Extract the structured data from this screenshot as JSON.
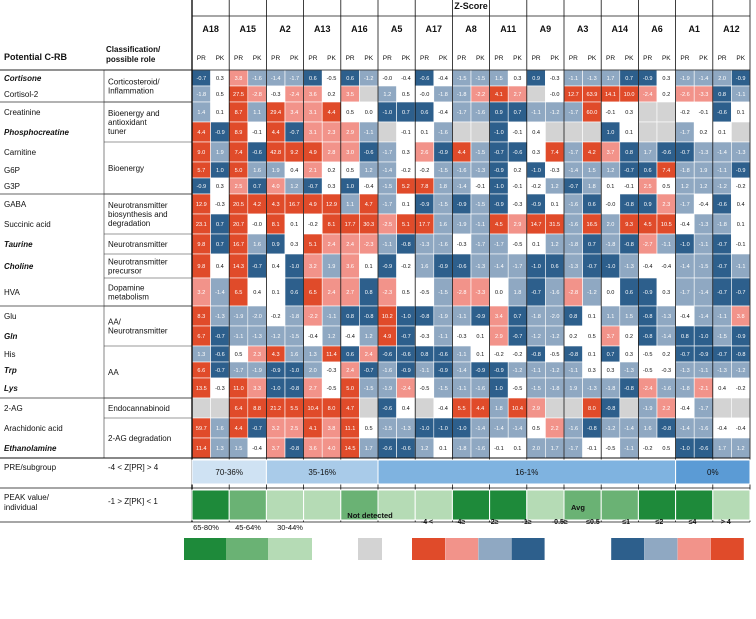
{
  "chart_data": {
    "type": "heatmap",
    "title": "Z-Score",
    "row_header": "Potential C-RB",
    "class_header": "Classification/ possible role",
    "subjects": [
      "A18",
      "A15",
      "A2",
      "A13",
      "A16",
      "A5",
      "A17",
      "A8",
      "A11",
      "A9",
      "A3",
      "A14",
      "A6",
      "A1",
      "A12"
    ],
    "subcolumns": [
      "PR",
      "PK"
    ],
    "rows": [
      {
        "name": "Cortisone",
        "italic": true,
        "values": [
          -0.7,
          0.3,
          3.8,
          -1.6,
          -1.4,
          -1.7,
          0.6,
          -0.5,
          0.6,
          -1.2,
          -0.0,
          -0.4,
          -0.6,
          -0.4,
          -1.5,
          -1.5,
          1.5,
          0.3,
          0.9,
          -0.3,
          -1.1,
          -1.3,
          1.7,
          0.7,
          -0.9,
          0.3,
          -1.9,
          -1.4,
          2.0,
          -0.9
        ]
      },
      {
        "name": "Cortisol-2",
        "italic": false,
        "values": [
          -1.8,
          0.5,
          27.5,
          -2.8,
          -0.3,
          -2.4,
          3.6,
          0.2,
          3.5,
          null,
          1.2,
          0.5,
          -0.0,
          -1.8,
          -1.8,
          -2.2,
          4.1,
          2.7,
          null,
          -0.0,
          12.7,
          63.9,
          14.1,
          10.0,
          -2.4,
          0.2,
          -2.6,
          -3.3,
          0.8,
          -1.1
        ]
      },
      {
        "name": "Creatinine",
        "italic": false,
        "values": [
          1.4,
          0.1,
          8.7,
          1.1,
          29.4,
          3.4,
          3.1,
          4.4,
          0.5,
          0.0,
          -1.0,
          0.7,
          0.6,
          -0.4,
          -1.7,
          -1.6,
          0.9,
          0.7,
          -1.1,
          -1.2,
          -1.7,
          60.0,
          -0.1,
          0.3,
          null,
          null,
          -0.2,
          -0.1,
          -0.6,
          0.1
        ]
      },
      {
        "name": "Phosphocreatine",
        "italic": true,
        "values": [
          4.4,
          -0.9,
          8.9,
          -0.1,
          4.4,
          -0.7,
          3.1,
          2.3,
          2.9,
          -1.1,
          null,
          -0.1,
          0.1,
          -1.6,
          null,
          null,
          -1.0,
          -0.1,
          0.4,
          null,
          null,
          null,
          1.0,
          0.1,
          null,
          null,
          -1.7,
          0.2,
          0.1,
          null
        ]
      },
      {
        "name": "Carnitine",
        "italic": false,
        "values": [
          9.0,
          1.9,
          7.4,
          -0.6,
          42.8,
          9.2,
          4.9,
          2.8,
          3.0,
          -0.6,
          -1.7,
          0.3,
          2.6,
          -0.9,
          4.4,
          -1.5,
          -0.7,
          -0.6,
          0.3,
          7.4,
          -1.7,
          4.2,
          3.7,
          0.8,
          1.7,
          -0.6,
          -0.7,
          -1.3,
          -1.4,
          -1.3
        ]
      },
      {
        "name": "G6P",
        "italic": false,
        "values": [
          5.7,
          1.0,
          5.0,
          1.6,
          1.9,
          0.4,
          2.1,
          0.2,
          0.5,
          1.2,
          -1.4,
          -0.2,
          -0.2,
          -1.5,
          -1.6,
          -1.3,
          -0.9,
          0.2,
          -1.0,
          -0.3,
          -1.4,
          1.5,
          1.2,
          -0.7,
          0.6,
          7.4,
          -1.8,
          1.9,
          -1.1,
          -0.9
        ]
      },
      {
        "name": "G3P",
        "italic": false,
        "values": [
          -0.9,
          0.3,
          2.5,
          0.7,
          4.0,
          1.2,
          -0.7,
          0.3,
          1.0,
          -0.4,
          -1.5,
          5.2,
          7.8,
          1.8,
          -1.4,
          -0.1,
          -1.0,
          -0.1,
          -0.2,
          1.2,
          -0.7,
          1.8,
          0.1,
          -0.1,
          2.5,
          0.5,
          1.2,
          1.2,
          -1.2,
          -0.2
        ]
      },
      {
        "name": "GABA",
        "italic": false,
        "values": [
          12.9,
          -0.3,
          20.5,
          4.2,
          4.3,
          16.7,
          4.9,
          12.9,
          1.1,
          4.7,
          -1.7,
          0.1,
          -0.9,
          -1.5,
          -0.9,
          -1.5,
          -0.9,
          -0.3,
          -0.9,
          0.1,
          -1.6,
          0.6,
          -0.0,
          -0.8,
          0.9,
          2.3,
          -1.7,
          -0.4,
          -0.6,
          0.4
        ]
      },
      {
        "name": "Succinic acid",
        "italic": false,
        "values": [
          23.1,
          0.7,
          20.7,
          -0.0,
          8.1,
          0.1,
          -0.2,
          8.1,
          17.7,
          30.3,
          -2.5,
          5.1,
          17.7,
          1.6,
          -1.9,
          -1.1,
          4.5,
          2.9,
          14.7,
          31.5,
          -1.6,
          16.5,
          2.0,
          9.3,
          4.5,
          10.5,
          -0.4,
          -1.3,
          -1.8,
          0.1
        ]
      },
      {
        "name": "Taurine",
        "italic": true,
        "values": [
          9.8,
          0.7,
          16.7,
          1.6,
          0.9,
          0.3,
          5.1,
          2.4,
          2.4,
          -2.3,
          -1.1,
          -0.8,
          -1.3,
          -1.6,
          -0.3,
          -1.7,
          -1.7,
          -0.5,
          0.1,
          1.2,
          -1.8,
          0.7,
          -1.8,
          -0.8,
          -2.7,
          -1.1,
          -1.0,
          -1.1,
          -0.7,
          -0.1
        ]
      },
      {
        "name": "Choline",
        "italic": true,
        "values": [
          9.8,
          0.4,
          14.3,
          -0.7,
          0.4,
          -1.0,
          3.2,
          1.9,
          3.6,
          0.1,
          -0.9,
          -0.2,
          1.6,
          -0.9,
          -0.6,
          -1.3,
          -1.4,
          -1.7,
          -1.0,
          0.6,
          -1.3,
          -0.7,
          -1.0,
          -1.3,
          -0.4,
          -0.4,
          -1.4,
          -1.5,
          -0.7,
          -1.1
        ]
      },
      {
        "name": "HVA",
        "italic": false,
        "values": [
          3.2,
          -1.4,
          6.5,
          0.4,
          0.1,
          0.6,
          6.5,
          2.4,
          2.7,
          0.8,
          -2.3,
          0.5,
          -0.5,
          -1.5,
          -2.8,
          -3.3,
          0.0,
          1.8,
          -0.7,
          -1.6,
          -2.8,
          -1.2,
          0.0,
          0.6,
          -0.9,
          0.3,
          -1.7,
          -1.4,
          -0.7,
          -0.7
        ]
      },
      {
        "name": "Glu",
        "italic": false,
        "values": [
          8.3,
          -1.3,
          -1.9,
          -2.0,
          -0.2,
          -1.8,
          -2.2,
          -1.1,
          0.8,
          -0.8,
          10.2,
          -1.0,
          -0.8,
          -1.9,
          -1.1,
          -0.9,
          3.4,
          0.7,
          -1.8,
          -2.0,
          0.8,
          0.1,
          1.1,
          1.5,
          -0.8,
          -1.3,
          -0.4,
          -1.4,
          -1.1,
          3.8
        ]
      },
      {
        "name": "Gln",
        "italic": true,
        "values": [
          6.7,
          -0.7,
          -1.1,
          -1.3,
          -1.2,
          -1.5,
          -0.4,
          1.2,
          -0.4,
          1.2,
          4.9,
          -0.7,
          -0.3,
          -1.1,
          -0.3,
          0.1,
          2.9,
          -0.7,
          -1.2,
          -1.2,
          0.2,
          0.5,
          3.7,
          0.2,
          -0.8,
          -1.4,
          0.8,
          -1.0,
          -1.5,
          -0.9
        ]
      },
      {
        "name": "His",
        "italic": false,
        "values": [
          1.3,
          -0.6,
          0.5,
          2.3,
          4.3,
          1.6,
          1.3,
          11.4,
          0.6,
          2.4,
          -0.6,
          -0.6,
          0.8,
          -0.6,
          -1.1,
          0.1,
          -0.2,
          -0.2,
          -0.8,
          -0.5,
          -0.8,
          0.1,
          0.7,
          0.3,
          -0.5,
          0.2,
          -0.7,
          -0.9,
          -0.7,
          -0.8
        ]
      },
      {
        "name": "Trp",
        "italic": true,
        "values": [
          6.6,
          -0.7,
          -1.7,
          -1.9,
          -0.9,
          -1.0,
          2.0,
          -0.3,
          2.4,
          -0.7,
          -1.6,
          -0.9,
          -1.1,
          -0.9,
          -1.4,
          -0.9,
          -0.9,
          -1.2,
          -1.1,
          -1.2,
          -1.1,
          0.3,
          0.3,
          -1.3,
          -0.5,
          -0.3,
          -1.3,
          -1.1,
          -1.3,
          -1.2
        ]
      },
      {
        "name": "Lys",
        "italic": true,
        "values": [
          13.5,
          -0.3,
          11.0,
          3.3,
          -1.0,
          -0.8,
          2.7,
          -0.5,
          5.0,
          -1.5,
          -1.9,
          -2.4,
          -0.5,
          -1.5,
          -1.1,
          -1.6,
          1.0,
          -0.5,
          -1.5,
          -1.8,
          1.9,
          -1.3,
          -1.8,
          -0.8,
          -2.4,
          -1.6,
          -1.8,
          -2.1,
          0.4,
          -0.2
        ]
      },
      {
        "name": "2-AG",
        "italic": false,
        "values": [
          null,
          null,
          6.4,
          8.8,
          21.2,
          5.5,
          10.4,
          8.0,
          4.7,
          null,
          -0.6,
          0.4,
          null,
          -0.4,
          5.5,
          4.4,
          1.8,
          10.4,
          2.9,
          null,
          null,
          8.0,
          -0.8,
          null,
          -1.9,
          2.2,
          -0.4,
          -1.7,
          null,
          null
        ]
      },
      {
        "name": "Arachidonic acid",
        "italic": false,
        "values": [
          59.7,
          1.6,
          4.4,
          -0.7,
          3.2,
          2.5,
          4.1,
          3.8,
          11.1,
          0.5,
          -1.5,
          -1.3,
          -1.0,
          -1.0,
          -1.0,
          -1.4,
          -1.4,
          -1.4,
          0.5,
          2.2,
          -1.6,
          -0.8,
          -1.2,
          -1.4,
          1.6,
          -0.8,
          -1.4,
          -1.6,
          -0.4,
          -0.4
        ]
      },
      {
        "name": "Ethanolamine",
        "italic": true,
        "values": [
          11.4,
          1.3,
          1.5,
          -0.4,
          3.7,
          -0.8,
          3.6,
          4.0,
          14.5,
          1.7,
          -0.6,
          -0.6,
          1.2,
          0.1,
          -1.8,
          -1.6,
          -0.1,
          0.1,
          2.0,
          1.7,
          -1.7,
          -0.1,
          -0.5,
          -1.1,
          -0.2,
          0.5,
          -1.0,
          -0.6,
          1.7,
          1.2
        ]
      }
    ],
    "classes": [
      {
        "label": "Corticosteroid/ Inflammation",
        "from": 0,
        "to": 1
      },
      {
        "label": "Bioenergy and antioxidant tuner",
        "from": 2,
        "to": 3
      },
      {
        "label": "Bioenergy",
        "from": 4,
        "to": 6
      },
      {
        "label": "Neurotransmitter biosynthesis and degradation",
        "from": 7,
        "to": 8
      },
      {
        "label": "Neurotransmitter",
        "from": 9,
        "to": 9
      },
      {
        "label": "Neurotransmitter precursor",
        "from": 10,
        "to": 10
      },
      {
        "label": "Dopamine metabolism",
        "from": 11,
        "to": 11
      },
      {
        "label": "AA/ Neurotransmitter",
        "from": 12,
        "to": 13
      },
      {
        "label": "AA",
        "from": 14,
        "to": 16
      },
      {
        "label": "Endocannabinoid",
        "from": 17,
        "to": 17
      },
      {
        "label": "2-AG degradation",
        "from": 18,
        "to": 19
      }
    ],
    "pre_subgroup": {
      "label": "PRE/subgroup",
      "criterion": "-4 < Z[PR] > 4",
      "groups": [
        {
          "label": "70-36%",
          "from": 0,
          "to": 1,
          "color": "#cfe2f3"
        },
        {
          "label": "35-16%",
          "from": 2,
          "to": 4,
          "color": "#a9cbe9"
        },
        {
          "label": "16-1%",
          "from": 5,
          "to": 12,
          "color": "#7fb3e0"
        },
        {
          "label": "0%",
          "from": 13,
          "to": 14,
          "color": "#5b9bd5"
        }
      ]
    },
    "peak_value": {
      "label": "PEAK value/ individual",
      "criterion": "-1 > Z[PK] < 1",
      "levels": [
        "high",
        "mid",
        "low",
        "low",
        "mid",
        "low",
        "low",
        "high",
        "high",
        "low",
        "mid",
        "mid",
        "high",
        "high",
        "low"
      ]
    },
    "legend_left": {
      "items": [
        {
          "label": "65-80%",
          "color": "#1e8a3a"
        },
        {
          "label": "45-64%",
          "color": "#6ab274"
        },
        {
          "label": "30-44%",
          "color": "#b5dbb5"
        }
      ]
    },
    "legend_nd": {
      "label": "Not detected",
      "color": "#d3d3d3"
    },
    "legend_avg": {
      "title": "Avg",
      "items": [
        {
          "label": "-4 <",
          "color": "#e04b2a"
        },
        {
          "label": "-4≥",
          "color": "#f2938a"
        },
        {
          "label": "-2≥",
          "color": "#8fa8c2"
        },
        {
          "label": "-1≥",
          "color": "#2d5f8c"
        },
        {
          "label": "-0.5≥",
          "color": "#ffffff"
        },
        {
          "label": "≤0.5",
          "color": "#ffffff"
        },
        {
          "label": "≤1",
          "color": "#2d5f8c"
        },
        {
          "label": "≤2",
          "color": "#8fa8c2"
        },
        {
          "label": "≤4",
          "color": "#f2938a"
        },
        {
          "label": "> 4",
          "color": "#e04b2a"
        }
      ]
    },
    "colors": {
      "strong_pos": "#e04b2a",
      "pos": "#f2938a",
      "neutral_blue": "#8fa8c2",
      "strong_neg": "#2d5f8c",
      "near_zero": "#ffffff",
      "not_detected": "#d3d3d3"
    }
  }
}
